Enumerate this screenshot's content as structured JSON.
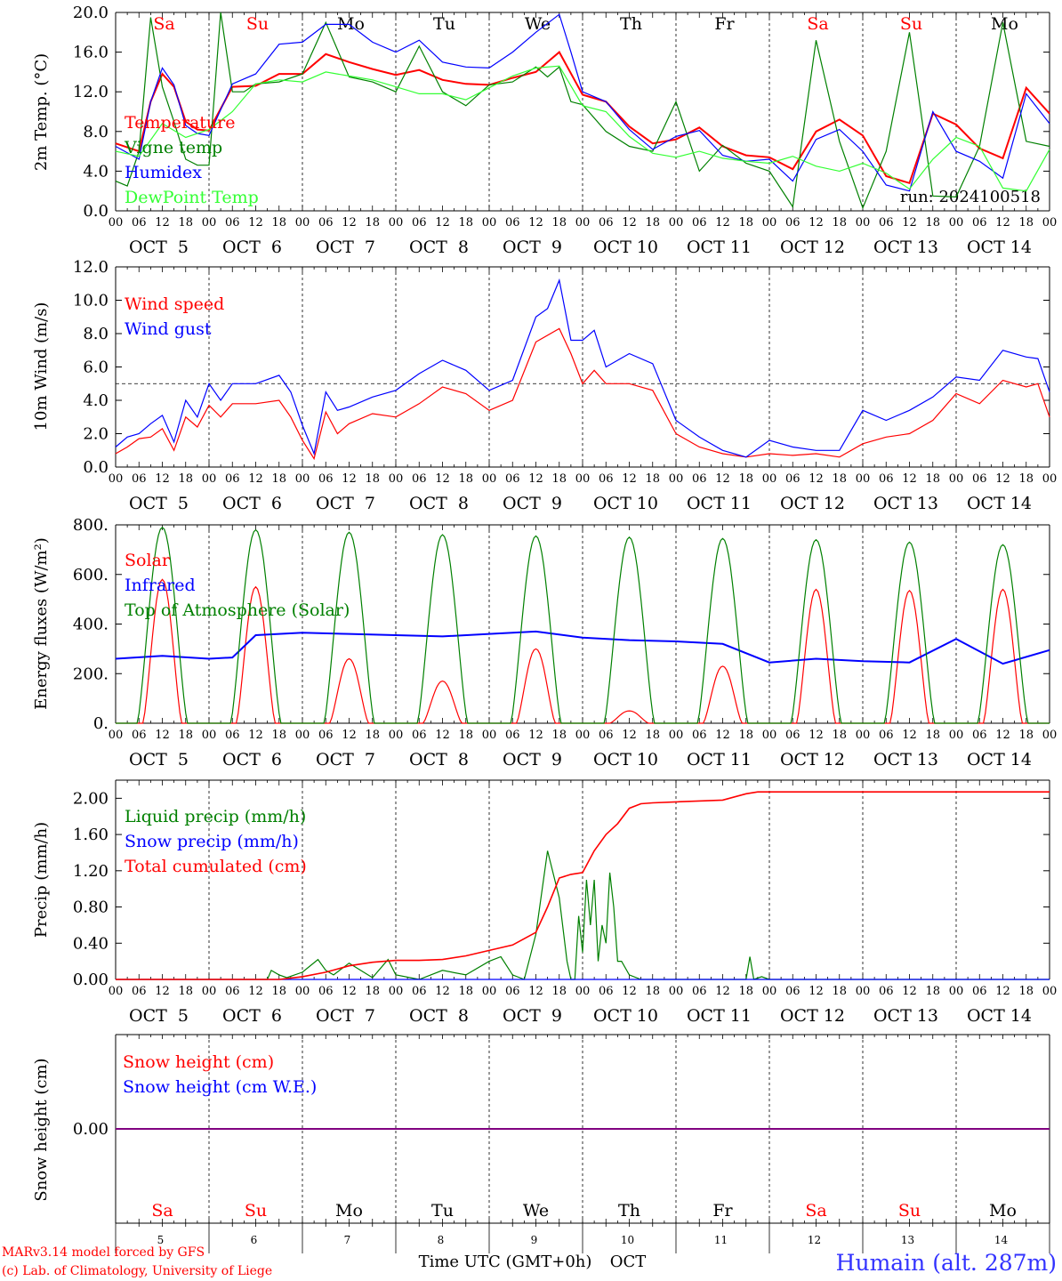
{
  "chart_data": [
    {
      "type": "line",
      "ylabel": "2m Temp. (°C)",
      "ylim": [
        0,
        20
      ],
      "yticks": [
        "0.0",
        "4.0",
        "8.0",
        "12.0",
        "16.0",
        "20.0"
      ],
      "grid": "dashed vertical at day boundaries",
      "run_label": "run: 2024100518",
      "x_unit": "hours since 2024-10-05 00 UTC",
      "series": [
        {
          "name": "Temperature",
          "color": "#ff0000",
          "x": [
            0,
            6,
            9,
            12,
            15,
            18,
            21,
            24,
            30,
            36,
            42,
            48,
            54,
            60,
            66,
            72,
            78,
            84,
            90,
            96,
            102,
            108,
            114,
            120,
            126,
            132,
            138,
            144,
            150,
            156,
            162,
            168,
            174,
            180,
            186,
            192,
            198,
            204,
            210,
            216,
            222,
            228,
            234,
            240
          ],
          "y": [
            6.8,
            6.0,
            11.0,
            13.8,
            12.5,
            9.0,
            8.2,
            8.1,
            12.5,
            12.6,
            13.8,
            13.8,
            15.8,
            15.0,
            14.3,
            13.7,
            14.2,
            13.2,
            12.8,
            12.7,
            13.4,
            14.0,
            16.0,
            11.7,
            11.0,
            8.5,
            6.8,
            7.2,
            8.4,
            6.5,
            5.6,
            5.4,
            4.2,
            8.0,
            9.2,
            7.6,
            3.5,
            2.8,
            9.8,
            8.7,
            6.3,
            5.3,
            12.4,
            9.8
          ]
        },
        {
          "name": "Vigne temp",
          "color": "#008000",
          "x": [
            0,
            3,
            6,
            9,
            12,
            15,
            18,
            21,
            24,
            27,
            30,
            33,
            36,
            42,
            48,
            54,
            60,
            66,
            72,
            78,
            84,
            90,
            96,
            102,
            108,
            111,
            114,
            117,
            120,
            126,
            132,
            138,
            144,
            150,
            156,
            162,
            168,
            174,
            180,
            186,
            192,
            198,
            204,
            210,
            216,
            222,
            228,
            234,
            240
          ],
          "y": [
            3.0,
            2.5,
            6.0,
            19.5,
            12.5,
            9.0,
            5.2,
            4.6,
            4.6,
            20.0,
            12.0,
            12.0,
            12.8,
            13.0,
            13.8,
            19.0,
            13.5,
            13.0,
            12.0,
            16.6,
            12.0,
            10.6,
            12.7,
            13.0,
            14.5,
            13.5,
            14.5,
            11.0,
            10.7,
            8.0,
            6.5,
            6.0,
            11.0,
            4.0,
            6.6,
            4.8,
            4.0,
            0.4,
            17.2,
            7.0,
            0.3,
            6.0,
            18.0,
            1.5,
            1.4,
            6.5,
            19.0,
            7.0,
            6.5
          ]
        },
        {
          "name": "Humidex",
          "color": "#0000ff",
          "x": [
            0,
            6,
            9,
            12,
            15,
            18,
            21,
            24,
            30,
            36,
            42,
            48,
            54,
            60,
            66,
            72,
            78,
            84,
            90,
            96,
            102,
            108,
            114,
            117,
            120,
            126,
            132,
            138,
            144,
            150,
            156,
            162,
            168,
            174,
            180,
            186,
            192,
            198,
            204,
            210,
            216,
            222,
            228,
            234,
            240
          ],
          "y": [
            6.5,
            5.2,
            11.0,
            14.4,
            12.7,
            8.6,
            7.8,
            7.6,
            12.8,
            13.8,
            16.8,
            17.0,
            18.8,
            18.8,
            17.0,
            16.0,
            17.2,
            15.0,
            14.5,
            14.4,
            16.0,
            18.0,
            19.8,
            16.0,
            12.0,
            11.0,
            8.2,
            6.2,
            7.5,
            8.1,
            5.6,
            5.0,
            5.2,
            3.0,
            7.2,
            8.2,
            6.0,
            2.6,
            2.0,
            10.0,
            6.0,
            5.0,
            3.3,
            11.8,
            8.8
          ]
        },
        {
          "name": "DewPoint Temp",
          "color": "#33ff33",
          "x": [
            0,
            6,
            12,
            18,
            24,
            30,
            36,
            42,
            48,
            54,
            60,
            66,
            72,
            78,
            84,
            90,
            96,
            102,
            108,
            114,
            120,
            126,
            132,
            138,
            144,
            150,
            156,
            162,
            168,
            174,
            180,
            186,
            192,
            198,
            204,
            210,
            216,
            222,
            228,
            234,
            240
          ],
          "y": [
            6.0,
            5.5,
            8.8,
            7.4,
            8.2,
            10.0,
            12.8,
            13.2,
            13.0,
            14.0,
            13.6,
            13.2,
            12.5,
            11.8,
            11.8,
            11.2,
            12.4,
            13.6,
            14.4,
            14.6,
            10.6,
            10.0,
            7.5,
            5.8,
            5.4,
            6.0,
            5.3,
            5.0,
            4.8,
            5.5,
            4.5,
            4.0,
            4.8,
            3.8,
            2.2,
            5.2,
            7.4,
            6.5,
            2.3,
            2.0,
            6.2
          ]
        }
      ]
    },
    {
      "type": "line",
      "ylabel": "10m Wind (m/s)",
      "ylim": [
        0,
        12
      ],
      "yticks": [
        "0.0",
        "2.0",
        "4.0",
        "6.0",
        "8.0",
        "10.0",
        "12.0"
      ],
      "threshold_dashed": 5,
      "series": [
        {
          "name": "Wind speed",
          "color": "#ff0000",
          "x": [
            0,
            3,
            6,
            9,
            12,
            15,
            18,
            21,
            24,
            27,
            30,
            36,
            42,
            45,
            48,
            51,
            54,
            57,
            60,
            66,
            72,
            78,
            84,
            90,
            96,
            102,
            108,
            114,
            117,
            120,
            123,
            126,
            132,
            138,
            144,
            150,
            156,
            162,
            168,
            174,
            180,
            186,
            192,
            198,
            204,
            210,
            216,
            222,
            228,
            234,
            237,
            240
          ],
          "y": [
            0.8,
            1.2,
            1.7,
            1.8,
            2.3,
            1.0,
            3.0,
            2.4,
            3.7,
            3.0,
            3.8,
            3.8,
            4.0,
            3.0,
            1.6,
            0.5,
            3.3,
            2.0,
            2.6,
            3.2,
            3.0,
            3.8,
            4.8,
            4.4,
            3.4,
            4.0,
            7.5,
            8.3,
            6.8,
            5.0,
            5.8,
            5.0,
            5.0,
            4.6,
            2.0,
            1.2,
            0.8,
            0.6,
            0.8,
            0.7,
            0.8,
            0.6,
            1.4,
            1.8,
            2.0,
            2.8,
            4.4,
            3.8,
            5.2,
            4.8,
            5.0,
            3.0
          ]
        },
        {
          "name": "Wind gust",
          "color": "#0000ff",
          "x": [
            0,
            3,
            6,
            9,
            12,
            15,
            18,
            21,
            24,
            27,
            30,
            36,
            42,
            45,
            48,
            51,
            54,
            57,
            60,
            66,
            72,
            78,
            84,
            90,
            96,
            102,
            108,
            111,
            114,
            117,
            120,
            123,
            126,
            132,
            138,
            144,
            150,
            156,
            162,
            168,
            174,
            180,
            186,
            192,
            198,
            204,
            210,
            216,
            222,
            228,
            234,
            237,
            240
          ],
          "y": [
            1.2,
            1.8,
            2.0,
            2.6,
            3.1,
            1.5,
            4.0,
            3.0,
            5.0,
            4.0,
            5.0,
            5.0,
            5.5,
            4.5,
            2.5,
            0.8,
            4.5,
            3.4,
            3.6,
            4.2,
            4.6,
            5.6,
            6.4,
            5.8,
            4.6,
            5.2,
            9.0,
            9.5,
            11.2,
            7.6,
            7.6,
            8.2,
            6.0,
            6.8,
            6.2,
            2.8,
            1.8,
            1.0,
            0.6,
            1.6,
            1.2,
            1.0,
            1.0,
            3.4,
            2.8,
            3.4,
            4.2,
            5.4,
            5.2,
            7.0,
            6.6,
            6.5,
            4.5
          ]
        }
      ]
    },
    {
      "type": "line",
      "ylabel": "Energy fluxes (W/m²)",
      "ylim": [
        0,
        800
      ],
      "yticks": [
        "0.",
        "200.",
        "400.",
        "600.",
        "800."
      ],
      "series": [
        {
          "name": "Solar",
          "color": "#ff0000",
          "daily_peak": [
            580,
            550,
            260,
            170,
            300,
            50,
            230,
            540,
            535,
            540
          ]
        },
        {
          "name": "Infrared",
          "color": "#0000ff",
          "x": [
            0,
            12,
            24,
            30,
            36,
            48,
            60,
            72,
            84,
            96,
            108,
            120,
            132,
            144,
            156,
            168,
            180,
            192,
            204,
            216,
            228,
            240
          ],
          "y": [
            260,
            272,
            260,
            265,
            355,
            365,
            360,
            355,
            350,
            360,
            370,
            345,
            335,
            330,
            320,
            245,
            260,
            250,
            245,
            340,
            240,
            295
          ]
        },
        {
          "name": "Top of Atmosphere (Solar)",
          "color": "#008000",
          "daily_peak": [
            790,
            780,
            770,
            760,
            755,
            750,
            745,
            740,
            730,
            720
          ]
        }
      ]
    },
    {
      "type": "line",
      "ylabel": "Precip (mm/h)",
      "ylim": [
        0,
        2.0
      ],
      "yticks": [
        "0.00",
        "0.40",
        "0.80",
        "1.20",
        "1.60",
        "2.00"
      ],
      "series": [
        {
          "name": "Liquid precip (mm/h)",
          "color": "#008000",
          "x": [
            0,
            39,
            40,
            42,
            44,
            48,
            52,
            54,
            56,
            60,
            66,
            70,
            72,
            78,
            84,
            90,
            96,
            99,
            102,
            105,
            108,
            111,
            114,
            116,
            117,
            118,
            119,
            120,
            121,
            122,
            123,
            124,
            125,
            126,
            127,
            128,
            129,
            130,
            132,
            135,
            138,
            144,
            162,
            163,
            164,
            166,
            168,
            240
          ],
          "y": [
            0,
            0,
            0.1,
            0.05,
            0.02,
            0.08,
            0.22,
            0.1,
            0.05,
            0.18,
            0.02,
            0.22,
            0.05,
            0.0,
            0.1,
            0.05,
            0.2,
            0.25,
            0.05,
            0.0,
            0.5,
            1.42,
            0.9,
            0.2,
            0.0,
            0.0,
            0.7,
            0.3,
            1.1,
            0.6,
            1.1,
            0.2,
            0.6,
            0.4,
            1.18,
            0.8,
            0.2,
            0.2,
            0.05,
            0.0,
            0.0,
            0.0,
            0.0,
            0.25,
            0.0,
            0.03,
            0.0,
            0.0
          ]
        },
        {
          "name": "Snow precip (mm/h)",
          "color": "#0000ff",
          "x": [
            0,
            240
          ],
          "y": [
            0,
            0
          ]
        },
        {
          "name": "Total cumulated (cm)",
          "color": "#ff0000",
          "x": [
            0,
            42,
            48,
            54,
            60,
            66,
            72,
            78,
            84,
            90,
            96,
            102,
            105,
            108,
            111,
            114,
            117,
            120,
            123,
            126,
            129,
            132,
            135,
            138,
            144,
            156,
            162,
            165,
            168,
            240
          ],
          "y": [
            0,
            0,
            0.03,
            0.08,
            0.15,
            0.19,
            0.21,
            0.21,
            0.22,
            0.26,
            0.32,
            0.38,
            0.45,
            0.52,
            0.8,
            1.12,
            1.16,
            1.18,
            1.42,
            1.6,
            1.72,
            1.89,
            1.94,
            1.95,
            1.96,
            1.98,
            2.05,
            2.07,
            2.07,
            2.07
          ]
        }
      ]
    },
    {
      "type": "line",
      "ylabel": "Snow height (cm)",
      "yticks": [
        "0.00"
      ],
      "series": [
        {
          "name": "Snow height (cm)",
          "color": "#ff0000",
          "x": [
            0,
            240
          ],
          "y": [
            0,
            0
          ]
        },
        {
          "name": "Snow height (cm W.E.)",
          "color": "#0000ff",
          "x": [
            0,
            240
          ],
          "y": [
            0,
            0
          ]
        }
      ]
    }
  ],
  "days": {
    "weekdays": [
      "Sa",
      "Su",
      "Mo",
      "Tu",
      "We",
      "Th",
      "Fr",
      "Sa",
      "Su",
      "Mo"
    ],
    "weekday_colors": [
      "#ff0000",
      "#ff0000",
      "#000000",
      "#000000",
      "#000000",
      "#000000",
      "#000000",
      "#ff0000",
      "#ff0000",
      "#000000"
    ],
    "date_labels": [
      "OCT  5",
      "OCT  6",
      "OCT  7",
      "OCT  8",
      "OCT  9",
      "OCT 10",
      "OCT 11",
      "OCT 12",
      "OCT 13",
      "OCT 14"
    ],
    "day_numbers": [
      "5",
      "6",
      "7",
      "8",
      "9",
      "10",
      "11",
      "12",
      "13",
      "14"
    ],
    "hour_ticks": [
      "00",
      "06",
      "12",
      "18"
    ],
    "last_tick": "00"
  },
  "footer": {
    "credit_line1": "MARv3.14 model forced by GFS",
    "credit_line2": "(c) Lab. of Climatology, University of Liege",
    "axis_title": "Time UTC (GMT+0h)",
    "month": "OCT",
    "location": "Humain (alt. 287m)"
  },
  "colors": {
    "red": "#ff0000",
    "blue": "#0000ff",
    "green": "#008000",
    "lightgreen": "#33ff33",
    "purple": "#800080"
  }
}
